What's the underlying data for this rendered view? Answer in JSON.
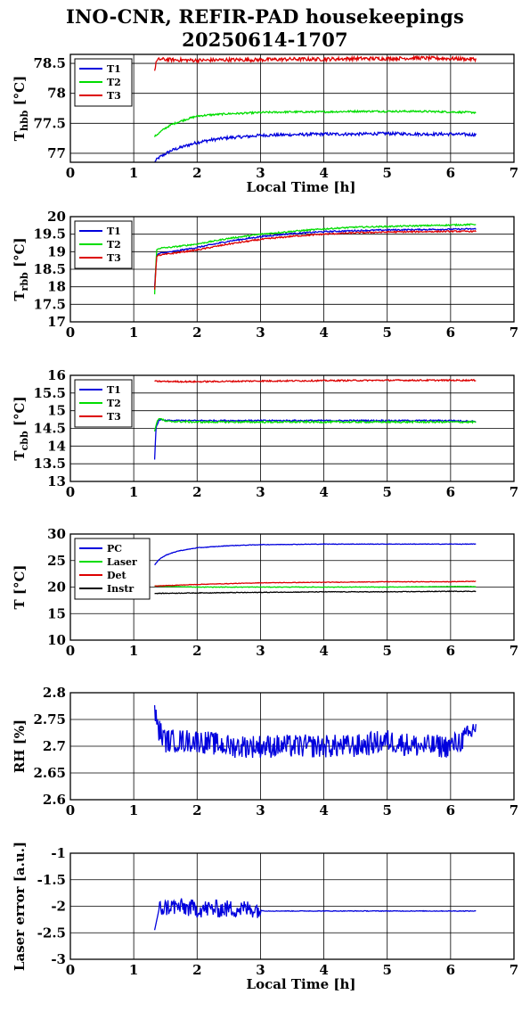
{
  "header": {
    "title_line1": "INO-CNR, REFIR-PAD housekeepings",
    "title_line2": "20250614-1707"
  },
  "chart_data": [
    {
      "id": "thbb",
      "type": "line",
      "ylabel_main": "T",
      "ylabel_sub": "hbb",
      "ylabel_unit": "[°C]",
      "xlabel": "Local Time [h]",
      "xlim": [
        0,
        7
      ],
      "ylim": [
        76.85,
        78.65
      ],
      "xticks": [
        "0",
        "1",
        "2",
        "3",
        "4",
        "5",
        "6",
        "7"
      ],
      "yticks": [
        {
          "v": 77,
          "label": "77"
        },
        {
          "v": 77.5,
          "label": "77.5"
        },
        {
          "v": 78,
          "label": "78"
        },
        {
          "v": 78.5,
          "label": "78.5"
        }
      ],
      "grid": true,
      "legend_position": "top-left",
      "series": [
        {
          "name": "T1",
          "color": "#0000dd",
          "x": [
            1.33,
            1.4,
            1.5,
            1.6,
            1.75,
            1.9,
            2.0,
            2.2,
            2.5,
            2.8,
            3.0,
            3.5,
            4.0,
            4.5,
            5.0,
            5.5,
            6.0,
            6.4
          ],
          "y": [
            76.86,
            76.93,
            76.99,
            77.05,
            77.1,
            77.15,
            77.18,
            77.22,
            77.26,
            77.28,
            77.3,
            77.31,
            77.32,
            77.32,
            77.33,
            77.32,
            77.32,
            77.31
          ],
          "noise": 0.025
        },
        {
          "name": "T2",
          "color": "#00dd00",
          "x": [
            1.33,
            1.4,
            1.5,
            1.6,
            1.75,
            1.9,
            2.0,
            2.2,
            2.5,
            2.8,
            3.0,
            3.5,
            4.0,
            4.5,
            5.0,
            5.5,
            6.0,
            6.4
          ],
          "y": [
            77.28,
            77.34,
            77.42,
            77.48,
            77.54,
            77.59,
            77.62,
            77.64,
            77.66,
            77.67,
            77.68,
            77.69,
            77.69,
            77.7,
            77.7,
            77.7,
            77.69,
            77.68
          ],
          "noise": 0.015
        },
        {
          "name": "T3",
          "color": "#dd0000",
          "x": [
            1.33,
            1.35,
            1.4,
            1.6,
            2.0,
            2.5,
            3.0,
            3.5,
            4.0,
            4.5,
            5.0,
            5.5,
            6.0,
            6.4
          ],
          "y": [
            78.35,
            78.52,
            78.57,
            78.56,
            78.55,
            78.56,
            78.56,
            78.57,
            78.57,
            78.58,
            78.58,
            78.59,
            78.58,
            78.57
          ],
          "noise": 0.03
        }
      ]
    },
    {
      "id": "trbb",
      "type": "line",
      "ylabel_main": "T",
      "ylabel_sub": "rbb",
      "ylabel_unit": "[°C]",
      "xlabel": "",
      "xlim": [
        0,
        7
      ],
      "ylim": [
        17,
        20
      ],
      "xticks": [
        "0",
        "1",
        "2",
        "3",
        "4",
        "5",
        "6",
        "7"
      ],
      "yticks": [
        {
          "v": 17,
          "label": "17"
        },
        {
          "v": 17.5,
          "label": "17.5"
        },
        {
          "v": 18,
          "label": "18"
        },
        {
          "v": 18.5,
          "label": "18.5"
        },
        {
          "v": 19,
          "label": "19"
        },
        {
          "v": 19.5,
          "label": "19.5"
        },
        {
          "v": 20,
          "label": "20"
        }
      ],
      "grid": true,
      "legend_position": "top-left",
      "series": [
        {
          "name": "T1",
          "color": "#0000dd",
          "x": [
            1.33,
            1.36,
            1.4,
            1.6,
            2.0,
            2.5,
            3.0,
            3.5,
            4.0,
            4.5,
            5.0,
            5.5,
            6.0,
            6.4
          ],
          "y": [
            18.0,
            18.88,
            18.95,
            19.0,
            19.12,
            19.3,
            19.43,
            19.52,
            19.57,
            19.6,
            19.62,
            19.63,
            19.64,
            19.65
          ],
          "noise": 0.02
        },
        {
          "name": "T2",
          "color": "#00dd00",
          "x": [
            1.33,
            1.36,
            1.4,
            1.6,
            2.0,
            2.5,
            3.0,
            3.5,
            4.0,
            4.5,
            5.0,
            5.5,
            6.0,
            6.4
          ],
          "y": [
            17.8,
            19.05,
            19.1,
            19.13,
            19.22,
            19.38,
            19.5,
            19.58,
            19.65,
            19.7,
            19.72,
            19.74,
            19.76,
            19.78
          ],
          "noise": 0.02
        },
        {
          "name": "T3",
          "color": "#dd0000",
          "x": [
            1.33,
            1.36,
            1.4,
            1.6,
            2.0,
            2.5,
            3.0,
            3.5,
            4.0,
            4.5,
            5.0,
            5.5,
            6.0,
            6.4
          ],
          "y": [
            17.9,
            18.85,
            18.9,
            18.95,
            19.05,
            19.22,
            19.35,
            19.44,
            19.5,
            19.54,
            19.56,
            19.57,
            19.58,
            19.58
          ],
          "noise": 0.02
        }
      ]
    },
    {
      "id": "tcbb",
      "type": "line",
      "ylabel_main": "T",
      "ylabel_sub": "cbb",
      "ylabel_unit": "[°C]",
      "xlabel": "",
      "xlim": [
        0,
        7
      ],
      "ylim": [
        13,
        16
      ],
      "xticks": [
        "0",
        "1",
        "2",
        "3",
        "4",
        "5",
        "6",
        "7"
      ],
      "yticks": [
        {
          "v": 13,
          "label": "13"
        },
        {
          "v": 13.5,
          "label": "13.5"
        },
        {
          "v": 14,
          "label": "14"
        },
        {
          "v": 14.5,
          "label": "14.5"
        },
        {
          "v": 15,
          "label": "15"
        },
        {
          "v": 15.5,
          "label": "15.5"
        },
        {
          "v": 16,
          "label": "16"
        }
      ],
      "grid": true,
      "legend_position": "top-left",
      "series": [
        {
          "name": "T1",
          "color": "#0000dd",
          "x": [
            1.33,
            1.35,
            1.4,
            1.5,
            2.0,
            3.0,
            4.0,
            5.0,
            6.0,
            6.4
          ],
          "y": [
            13.6,
            14.5,
            14.75,
            14.72,
            14.72,
            14.72,
            14.72,
            14.72,
            14.72,
            14.7
          ],
          "noise": 0.02
        },
        {
          "name": "T2",
          "color": "#00dd00",
          "x": [
            1.33,
            1.35,
            1.4,
            1.5,
            2.0,
            3.0,
            4.0,
            5.0,
            6.0,
            6.4
          ],
          "y": [
            14.4,
            14.6,
            14.8,
            14.7,
            14.68,
            14.68,
            14.68,
            14.68,
            14.68,
            14.68
          ],
          "noise": 0.025
        },
        {
          "name": "T3",
          "color": "#dd0000",
          "x": [
            1.33,
            2.0,
            3.0,
            4.0,
            5.0,
            6.0,
            6.4
          ],
          "y": [
            15.83,
            15.82,
            15.84,
            15.85,
            15.86,
            15.86,
            15.86
          ],
          "noise": 0.02
        }
      ]
    },
    {
      "id": "tmisc",
      "type": "line",
      "ylabel_main": "T",
      "ylabel_sub": "",
      "ylabel_unit": "[°C]",
      "xlabel": "",
      "xlim": [
        0,
        7
      ],
      "ylim": [
        10,
        30
      ],
      "xticks": [
        "0",
        "1",
        "2",
        "3",
        "4",
        "5",
        "6",
        "7"
      ],
      "yticks": [
        {
          "v": 10,
          "label": "10"
        },
        {
          "v": 15,
          "label": "15"
        },
        {
          "v": 20,
          "label": "20"
        },
        {
          "v": 25,
          "label": "25"
        },
        {
          "v": 30,
          "label": "30"
        }
      ],
      "grid": true,
      "legend_position": "top-left",
      "series": [
        {
          "name": "PC",
          "color": "#0000dd",
          "x": [
            1.33,
            1.4,
            1.5,
            1.7,
            2.0,
            2.5,
            3.0,
            4.0,
            5.0,
            6.0,
            6.4
          ],
          "y": [
            24.2,
            25.2,
            26.0,
            26.8,
            27.4,
            27.8,
            28.0,
            28.1,
            28.1,
            28.1,
            28.1
          ],
          "noise": 0.05
        },
        {
          "name": "Laser",
          "color": "#00dd00",
          "x": [
            1.33,
            2.0,
            3.0,
            4.0,
            5.0,
            6.0,
            6.4
          ],
          "y": [
            20.2,
            20.0,
            20.0,
            20.0,
            20.0,
            20.1,
            20.1
          ],
          "noise": 0.05
        },
        {
          "name": "Det",
          "color": "#dd0000",
          "x": [
            1.33,
            2.0,
            3.0,
            4.0,
            5.0,
            6.0,
            6.4
          ],
          "y": [
            20.2,
            20.5,
            20.8,
            20.9,
            21.0,
            21.0,
            21.1
          ],
          "noise": 0.05
        },
        {
          "name": "Instr",
          "color": "#000000",
          "x": [
            1.33,
            2.0,
            3.0,
            4.0,
            5.0,
            6.0,
            6.4
          ],
          "y": [
            18.8,
            18.9,
            19.0,
            19.1,
            19.1,
            19.2,
            19.2
          ],
          "noise": 0.06
        }
      ]
    },
    {
      "id": "rh",
      "type": "line",
      "ylabel_main": "RH [%]",
      "ylabel_sub": "",
      "ylabel_unit": "",
      "xlabel": "",
      "xlim": [
        0,
        7
      ],
      "ylim": [
        2.6,
        2.8
      ],
      "xticks": [
        "0",
        "1",
        "2",
        "3",
        "4",
        "5",
        "6",
        "7"
      ],
      "yticks": [
        {
          "v": 2.6,
          "label": "2.6"
        },
        {
          "v": 2.65,
          "label": "2.65"
        },
        {
          "v": 2.7,
          "label": "2.7"
        },
        {
          "v": 2.75,
          "label": "2.75"
        },
        {
          "v": 2.8,
          "label": "2.8"
        }
      ],
      "grid": true,
      "legend_position": "none",
      "series": [
        {
          "name": "",
          "color": "#0000dd",
          "x": [
            1.33,
            1.4,
            1.5,
            2.0,
            2.5,
            3.0,
            3.5,
            4.0,
            4.5,
            5.0,
            5.5,
            6.0,
            6.3,
            6.4
          ],
          "y": [
            2.76,
            2.73,
            2.71,
            2.71,
            2.7,
            2.7,
            2.7,
            2.7,
            2.7,
            2.71,
            2.7,
            2.7,
            2.72,
            2.74
          ],
          "noise": 0.022
        }
      ]
    },
    {
      "id": "laser",
      "type": "line",
      "ylabel_main": "Laser error [a.u.]",
      "ylabel_sub": "",
      "ylabel_unit": "",
      "xlabel": "Local Time [h]",
      "xlim": [
        0,
        7
      ],
      "ylim": [
        -3,
        -1
      ],
      "xticks": [
        "0",
        "1",
        "2",
        "3",
        "4",
        "5",
        "6",
        "7"
      ],
      "yticks": [
        {
          "v": -3,
          "label": "-3"
        },
        {
          "v": -2.5,
          "label": "-2.5"
        },
        {
          "v": -2,
          "label": "-2"
        },
        {
          "v": -1.5,
          "label": "-1.5"
        },
        {
          "v": -1,
          "label": "-1"
        }
      ],
      "grid": true,
      "legend_position": "none",
      "series": [
        {
          "name": "",
          "color": "#0000dd",
          "x": [
            1.33,
            1.4,
            1.6,
            2.0,
            2.5,
            2.95,
            3.0,
            3.1,
            4.0,
            5.0,
            6.0,
            6.4
          ],
          "y": [
            -2.45,
            -2.05,
            -2.0,
            -2.05,
            -2.05,
            -2.05,
            -2.08,
            -2.09,
            -2.09,
            -2.09,
            -2.09,
            -2.09
          ],
          "noise": 0.0
        }
      ]
    }
  ]
}
